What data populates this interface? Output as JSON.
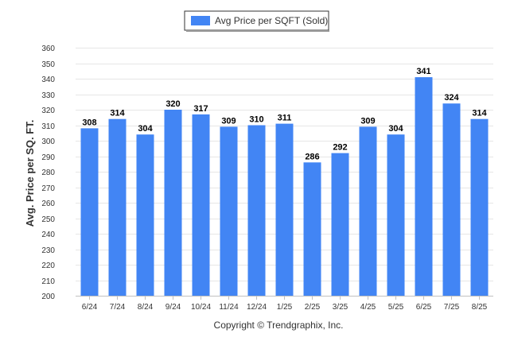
{
  "chart_data": {
    "type": "bar",
    "categories": [
      "6/24",
      "7/24",
      "8/24",
      "9/24",
      "10/24",
      "11/24",
      "12/24",
      "1/25",
      "2/25",
      "3/25",
      "4/25",
      "5/25",
      "6/25",
      "7/25",
      "8/25"
    ],
    "series": [
      {
        "name": "Avg Price per SQFT (Sold)",
        "values": [
          308,
          314,
          304,
          320,
          317,
          309,
          310,
          311,
          286,
          292,
          309,
          304,
          341,
          324,
          314
        ],
        "color": "#4285f4"
      }
    ],
    "ylabel": "Avg. Price per SQ. FT.",
    "xlabel": "",
    "ylim": [
      200,
      360
    ],
    "yticks": [
      200,
      210,
      220,
      230,
      240,
      250,
      260,
      270,
      280,
      290,
      300,
      310,
      320,
      330,
      340,
      350,
      360
    ],
    "grid": true,
    "legend_position": "top-center",
    "data_labels": true,
    "footer": "Copyright © Trendgraphix, Inc."
  }
}
